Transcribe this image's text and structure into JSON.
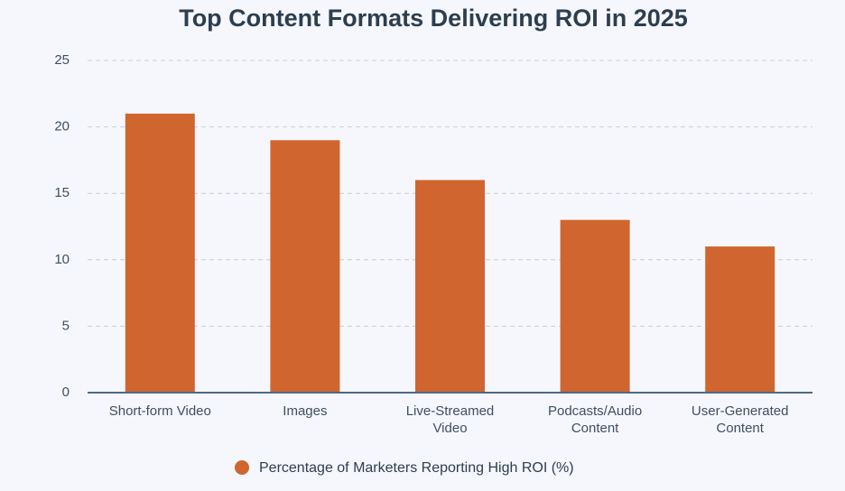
{
  "chart_data": {
    "type": "bar",
    "title": "Top Content Formats Delivering ROI in 2025",
    "categories": [
      "Short-form Video",
      "Images",
      "Live-Streamed Video",
      "Podcasts/Audio Content",
      "User-Generated Content"
    ],
    "series": [
      {
        "name": "Percentage of Marketers Reporting High ROI (%)",
        "color": "#d0652f",
        "values": [
          21,
          19,
          16,
          13,
          11
        ]
      }
    ],
    "ylim": [
      0,
      25
    ],
    "yticks": [
      0,
      5,
      10,
      15,
      20,
      25
    ],
    "grid": true
  }
}
